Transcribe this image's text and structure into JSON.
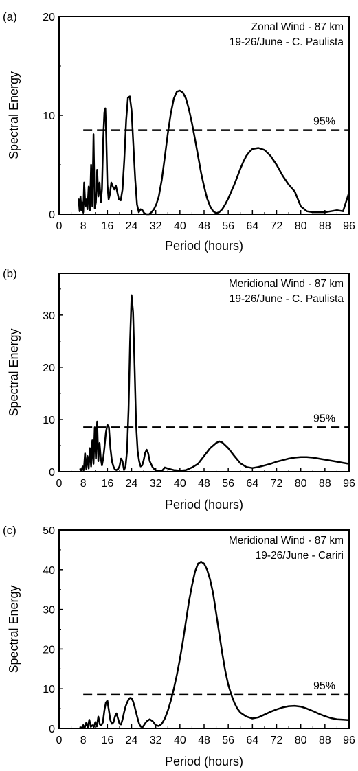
{
  "chart_data": [
    {
      "panel_label": "(a)",
      "type": "line",
      "annotation_lines": [
        "Zonal Wind - 87 km",
        "19-26/June - C. Paulista"
      ],
      "xlabel": "Period (hours)",
      "ylabel": "Spectral Energy",
      "xlim": [
        0,
        96
      ],
      "ylim": [
        0,
        20
      ],
      "xticks": [
        0,
        8,
        16,
        24,
        32,
        40,
        48,
        56,
        64,
        72,
        80,
        88,
        96
      ],
      "yticks": [
        0,
        10,
        20
      ],
      "threshold": {
        "label": "95%",
        "value": 8.5,
        "x_start": 8,
        "x_end": 96
      },
      "series": [
        {
          "x": [
            6.5,
            6.8,
            7.1,
            7.4,
            7.7,
            8,
            8.3,
            8.7,
            9,
            9.4,
            9.8,
            10.2,
            10.6,
            11,
            11.4,
            11.8,
            12.2,
            12.6,
            13,
            13.4,
            13.8,
            14.2,
            14.6,
            15,
            15.3,
            15.6,
            16,
            16.4,
            16.8,
            17.3,
            17.8,
            18.3,
            18.8,
            19.3,
            19.8,
            20.4,
            21,
            21.6,
            22.2,
            22.8,
            23.4,
            24,
            24.6,
            25.2,
            25.8,
            26.4,
            27,
            27.6,
            28.2,
            29,
            29.8,
            30.6,
            31.4,
            32.2,
            33,
            34,
            35,
            36,
            37,
            38,
            39,
            40,
            41,
            42,
            43,
            44,
            45,
            46,
            47,
            48,
            49,
            50,
            51,
            52,
            53,
            54,
            55,
            56,
            57,
            58,
            59,
            60,
            61,
            62,
            63,
            64,
            66,
            68,
            70,
            72,
            74,
            76,
            78,
            80,
            82,
            84,
            86,
            88,
            90,
            92,
            94,
            96
          ],
          "y": [
            1.5,
            0.3,
            1.8,
            0.4,
            1.2,
            0.2,
            3.2,
            0.8,
            1.5,
            0.5,
            2.8,
            0.4,
            5,
            0.8,
            8.1,
            0.6,
            1.2,
            4.5,
            1.8,
            3.2,
            1.2,
            2.5,
            7.5,
            10.3,
            10.7,
            8,
            3,
            1.5,
            2,
            3.2,
            2.8,
            2.5,
            2.9,
            2.2,
            1.5,
            1.4,
            2.5,
            5.5,
            9.5,
            11.8,
            11.9,
            10.5,
            7,
            3.5,
            1,
            0.2,
            0.5,
            0.4,
            0.1,
            0,
            0,
            0.2,
            0.5,
            1,
            1.8,
            3.5,
            5.8,
            8.2,
            10.2,
            11.7,
            12.4,
            12.5,
            12.3,
            11.7,
            10.6,
            9.2,
            7.6,
            5.9,
            4.2,
            2.8,
            1.6,
            0.8,
            0.3,
            0.1,
            0.2,
            0.5,
            1,
            1.6,
            2.3,
            3,
            3.8,
            4.6,
            5.3,
            5.9,
            6.3,
            6.6,
            6.7,
            6.5,
            5.9,
            5,
            3.9,
            3,
            2.3,
            0.8,
            0.3,
            0.2,
            0.2,
            0.2,
            0.3,
            0.4,
            0.3,
            2.2
          ]
        }
      ]
    },
    {
      "panel_label": "(b)",
      "type": "line",
      "annotation_lines": [
        "Meridional Wind - 87 km",
        "19-26/June - C. Paulista"
      ],
      "xlabel": "Period (hours)",
      "ylabel": "Spectral Energy",
      "xlim": [
        0,
        96
      ],
      "ylim": [
        0,
        38
      ],
      "xticks": [
        0,
        8,
        16,
        24,
        32,
        40,
        48,
        56,
        64,
        72,
        80,
        88,
        96
      ],
      "yticks": [
        0,
        10,
        20,
        30
      ],
      "threshold": {
        "label": "95%",
        "value": 8.5,
        "x_start": 8,
        "x_end": 96
      },
      "series": [
        {
          "x": [
            7,
            7.4,
            7.8,
            8.2,
            8.6,
            9,
            9.4,
            9.8,
            10.2,
            10.6,
            11,
            11.4,
            11.8,
            12.2,
            12.6,
            13,
            13.4,
            13.8,
            14.2,
            14.6,
            15,
            15.5,
            16,
            16.5,
            17,
            17.5,
            18,
            18.5,
            19,
            19.5,
            20,
            20.5,
            21,
            21.5,
            22,
            22.5,
            23,
            23.5,
            24,
            24.5,
            25,
            25.5,
            26,
            26.5,
            27,
            27.5,
            28,
            28.5,
            29,
            29.5,
            30,
            31,
            32,
            33,
            34,
            35,
            36,
            38,
            40,
            42,
            44,
            46,
            48,
            50,
            52,
            53,
            54,
            56,
            58,
            60,
            62,
            64,
            66,
            68,
            70,
            72,
            74,
            76,
            78,
            80,
            82,
            84,
            86,
            88,
            90,
            92,
            94,
            96
          ],
          "y": [
            0.5,
            0.2,
            1,
            0.3,
            3.5,
            0.5,
            3,
            0.6,
            4.5,
            1,
            6,
            1.5,
            8.5,
            2.5,
            9.6,
            2,
            5.5,
            2.5,
            1.2,
            2.5,
            4.5,
            7.5,
            9,
            8.5,
            4.5,
            2,
            1,
            0.4,
            0.3,
            0.5,
            1,
            2.5,
            2,
            0.3,
            1,
            4,
            12,
            25,
            33.8,
            30.5,
            20,
            9,
            4,
            2,
            1,
            1.2,
            2.2,
            3.6,
            4.2,
            3.5,
            2,
            0.8,
            0.2,
            0.1,
            0.1,
            0.8,
            0.6,
            0.3,
            0.2,
            0.3,
            0.8,
            1.5,
            3,
            4.5,
            5.5,
            5.8,
            5.6,
            4.5,
            3,
            1.6,
            0.9,
            0.7,
            0.9,
            1.2,
            1.5,
            1.9,
            2.2,
            2.5,
            2.7,
            2.8,
            2.8,
            2.7,
            2.5,
            2.3,
            2.1,
            1.9,
            1.7,
            1.5
          ]
        }
      ]
    },
    {
      "panel_label": "(c)",
      "type": "line",
      "annotation_lines": [
        "Meridional Wind - 87 km",
        "19-26/June - Cariri"
      ],
      "xlabel": "Period (hours)",
      "ylabel": "Spectral Energy",
      "xlim": [
        0,
        96
      ],
      "ylim": [
        0,
        50
      ],
      "xticks": [
        0,
        8,
        16,
        24,
        32,
        40,
        48,
        56,
        64,
        72,
        80,
        88,
        96
      ],
      "yticks": [
        0,
        10,
        20,
        30,
        40,
        50
      ],
      "threshold": {
        "label": "95%",
        "value": 8.5,
        "x_start": 8,
        "x_end": 96
      },
      "series": [
        {
          "x": [
            7,
            7.5,
            8,
            8.5,
            9,
            9.5,
            10,
            10.5,
            11,
            11.5,
            12,
            12.5,
            13,
            13.5,
            14,
            14.5,
            15,
            15.5,
            16,
            16.5,
            17,
            17.5,
            18,
            18.5,
            19,
            19.5,
            20,
            20.5,
            21,
            21.5,
            22,
            22.5,
            23,
            23.5,
            24,
            24.5,
            25,
            25.5,
            26,
            26.5,
            27,
            27.5,
            28,
            28.5,
            29,
            30,
            31,
            32,
            33,
            34,
            35,
            36,
            37,
            38,
            39,
            40,
            41,
            42,
            43,
            44,
            45,
            46,
            47,
            48,
            49,
            50,
            51,
            52,
            53,
            54,
            55,
            56,
            57,
            58,
            59,
            60,
            62,
            64,
            66,
            68,
            70,
            72,
            74,
            76,
            78,
            80,
            82,
            84,
            86,
            88,
            90,
            92,
            94,
            96
          ],
          "y": [
            0.3,
            0.1,
            0.8,
            0.2,
            1.5,
            0.3,
            2.2,
            0.4,
            0.8,
            0.4,
            1.6,
            0.5,
            3,
            1,
            0.8,
            1.5,
            4.5,
            6.5,
            7,
            4.5,
            2,
            1.2,
            1.5,
            3,
            3.8,
            2.5,
            1.2,
            1,
            2.2,
            4,
            5.5,
            6.5,
            7.3,
            7.7,
            7.6,
            6.8,
            5.5,
            4,
            2.5,
            1.2,
            0.5,
            0.3,
            0.7,
            1.3,
            1.8,
            2.3,
            1.8,
            0.8,
            0.6,
            1.2,
            2.5,
            4.5,
            7,
            10,
            13.5,
            17.5,
            22,
            27,
            32,
            36,
            39.5,
            41.5,
            42,
            41.5,
            40,
            37.5,
            34,
            29,
            24,
            19,
            14.5,
            11,
            8.5,
            6.5,
            5,
            4,
            3,
            2.5,
            2.8,
            3.5,
            4.2,
            4.8,
            5.3,
            5.6,
            5.7,
            5.5,
            5,
            4.4,
            3.7,
            3.1,
            2.6,
            2.3,
            2.2,
            2.1
          ]
        }
      ]
    }
  ]
}
